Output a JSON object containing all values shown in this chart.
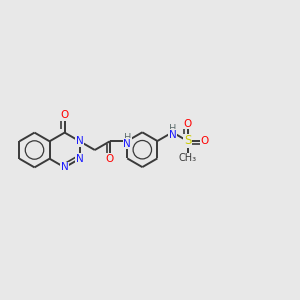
{
  "bg_color": "#e8e8e8",
  "bond_color": "#3a3a3a",
  "bond_width": 1.4,
  "atom_colors": {
    "C": "#3a3a3a",
    "N": "#1a1aff",
    "O": "#ff0000",
    "S": "#cccc00",
    "H": "#607070"
  },
  "BL": 0.058,
  "fig_w": 3.0,
  "fig_h": 3.0,
  "dpi": 100
}
